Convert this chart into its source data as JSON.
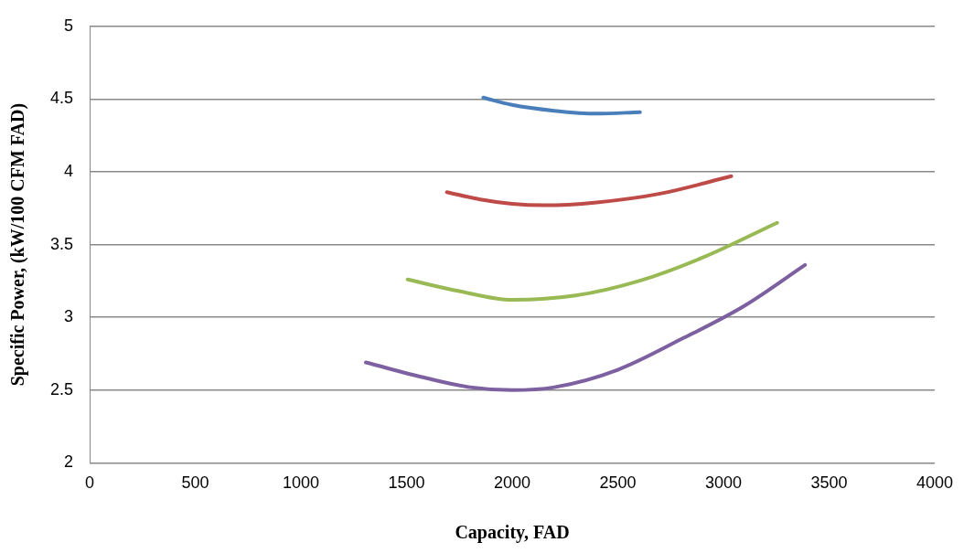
{
  "chart_data": {
    "type": "line",
    "xlabel": "Capacity, FAD",
    "ylabel": "Specific Power, (kW/100 CFM FAD)",
    "xlim": [
      0,
      4000
    ],
    "xticks": [
      0,
      500,
      1000,
      1500,
      2000,
      2500,
      3000,
      3500,
      4000
    ],
    "ylim": [
      2,
      5
    ],
    "yticks": [
      2,
      2.5,
      3,
      3.5,
      4,
      4.5,
      5
    ],
    "grid": "y",
    "legend": false,
    "marker": "none",
    "line_style": "solid",
    "series": [
      {
        "color": "#4a7ebb",
        "x": [
          1863,
          2000,
          2200,
          2400,
          2605
        ],
        "values": [
          4.51,
          4.46,
          4.42,
          4.4,
          4.41
        ]
      },
      {
        "color": "#be4b48",
        "x": [
          1691,
          1850,
          2000,
          2150,
          2400,
          2700,
          3037
        ],
        "values": [
          3.86,
          3.81,
          3.78,
          3.77,
          3.79,
          3.85,
          3.97
        ]
      },
      {
        "color": "#98b954",
        "x": [
          1505,
          1750,
          2000,
          2300,
          2600,
          2900,
          3254
        ],
        "values": [
          3.26,
          3.18,
          3.12,
          3.15,
          3.25,
          3.41,
          3.65
        ]
      },
      {
        "color": "#7d60a0",
        "x": [
          1307,
          1600,
          1800,
          2000,
          2200,
          2500,
          2800,
          3100,
          3386
        ],
        "values": [
          2.69,
          2.58,
          2.52,
          2.5,
          2.52,
          2.64,
          2.85,
          3.08,
          3.36
        ]
      }
    ]
  }
}
